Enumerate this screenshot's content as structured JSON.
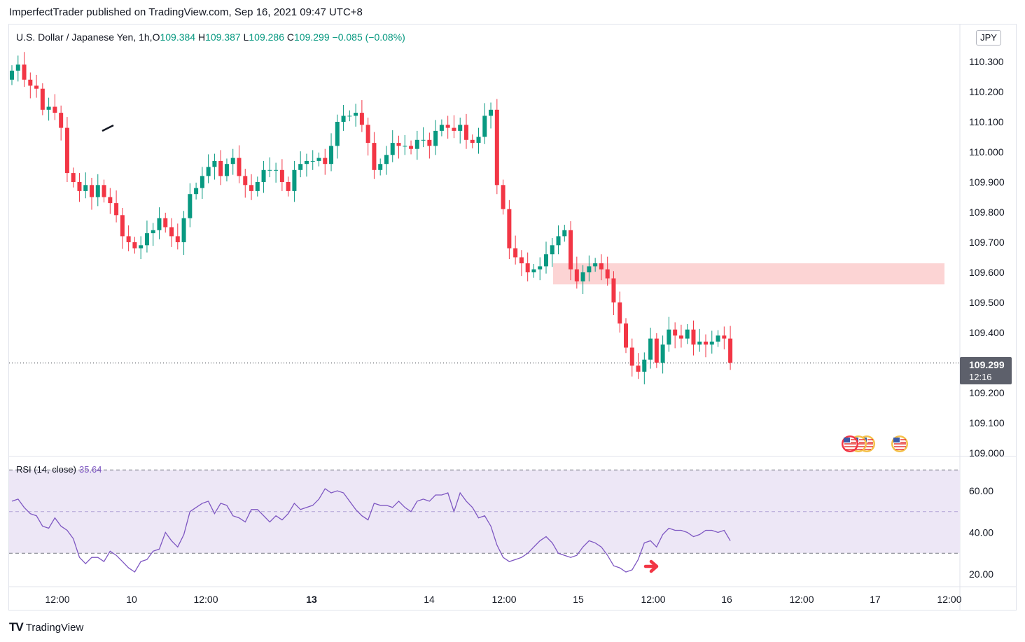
{
  "publisher": "ImperfectTrader published on TradingView.com, Sep 16, 2021 09:47 UTC+8",
  "header": {
    "symbol": "U.S. Dollar / Japanese Yen, 1h,",
    "o_label": "O",
    "o_value": "109.384",
    "h_label": "H",
    "h_value": "109.387",
    "l_label": "L",
    "l_value": "109.286",
    "c_label": "C",
    "c_value": "109.299",
    "change": "−0.085 (−0.08%)"
  },
  "currency_badge": "JPY",
  "last_price": {
    "price": "109.299",
    "countdown": "12:16"
  },
  "rsi": {
    "label": "RSI (14, close)",
    "value": "35.64"
  },
  "brand": {
    "logo": "TV",
    "name": "TradingView"
  },
  "colors": {
    "up": "#089981",
    "down": "#f23645",
    "rsi_line": "#7e57c2",
    "rsi_band": "#ede7f6",
    "zone": "#fcd4d4",
    "arrow": "#f23645"
  },
  "icons": [
    "us-flag-event-icon",
    "us-flag-event-icon",
    "us-flag-event-icon",
    "us-flag-event-icon",
    "red-arrow-icon",
    "diagonal-line-drawing"
  ],
  "chart_data": [
    {
      "type": "candlestick",
      "title": "U.S. Dollar / Japanese Yen, 1h",
      "ylim": [
        109.0,
        110.4
      ],
      "y_ticks": [
        "110.300",
        "110.200",
        "110.100",
        "110.000",
        "109.900",
        "109.800",
        "109.700",
        "109.600",
        "109.500",
        "109.400",
        "109.300",
        "109.200",
        "109.100",
        "109.000"
      ],
      "x_ticks": [
        "12:00",
        "10",
        "12:00",
        "13",
        "14",
        "12:00",
        "15",
        "12:00",
        "16",
        "12:00",
        "17",
        "12:00"
      ],
      "close": [
        110.27,
        110.29,
        110.24,
        110.22,
        110.21,
        110.14,
        110.15,
        110.13,
        110.08,
        109.93,
        109.9,
        109.87,
        109.89,
        109.85,
        109.89,
        109.85,
        109.83,
        109.79,
        109.72,
        109.7,
        109.68,
        109.69,
        109.73,
        109.74,
        109.78,
        109.75,
        109.72,
        109.7,
        109.78,
        109.86,
        109.88,
        109.92,
        109.95,
        109.97,
        109.92,
        109.96,
        109.98,
        109.92,
        109.89,
        109.87,
        109.9,
        109.94,
        109.94,
        109.94,
        109.9,
        109.87,
        109.94,
        109.96,
        109.97,
        109.97,
        109.98,
        109.96,
        110.02,
        110.1,
        110.12,
        110.12,
        110.13,
        110.09,
        110.03,
        109.94,
        109.96,
        109.99,
        110.03,
        110.02,
        110.02,
        110.01,
        110.04,
        110.04,
        110.02,
        110.07,
        110.09,
        110.08,
        110.07,
        110.09,
        110.04,
        110.03,
        110.05,
        110.12,
        110.14,
        109.89,
        109.81,
        109.68,
        109.65,
        109.63,
        109.6,
        109.61,
        109.62,
        109.66,
        109.69,
        109.72,
        109.74,
        109.61,
        109.57,
        109.6,
        109.62,
        109.63,
        109.61,
        109.58,
        109.5,
        109.43,
        109.35,
        109.29,
        109.27,
        109.31,
        109.38,
        109.3,
        109.36,
        109.41,
        109.39,
        109.38,
        109.41,
        109.36,
        109.37,
        109.36,
        109.37,
        109.39,
        109.38,
        109.3
      ],
      "open_first": 110.24,
      "zone": {
        "from": 109.56,
        "to": 109.63
      }
    },
    {
      "type": "line",
      "title": "RSI (14, close)",
      "ylim": [
        15,
        70
      ],
      "y_ticks": [
        "60.00",
        "40.00",
        "20.00"
      ],
      "levels": [
        70,
        50,
        30
      ],
      "values": [
        55,
        56,
        52,
        49,
        48,
        43,
        42,
        47,
        43,
        41,
        37,
        28,
        25,
        28,
        28,
        26,
        31,
        29,
        26,
        23,
        21,
        26,
        27,
        31,
        32,
        40,
        36,
        33,
        39,
        50,
        52,
        54,
        55,
        49,
        54,
        53,
        48,
        47,
        45,
        51,
        51,
        48,
        45,
        48,
        46,
        49,
        54,
        51,
        52,
        53,
        56,
        61,
        59,
        60,
        59,
        55,
        51,
        48,
        46,
        54,
        53,
        53,
        52,
        55,
        52,
        50,
        55,
        56,
        55,
        58,
        58,
        59,
        50,
        59,
        55,
        52,
        47,
        48,
        43,
        34,
        28,
        26,
        27,
        28,
        30,
        33,
        36,
        38,
        35,
        30,
        29,
        28,
        29,
        33,
        36,
        35,
        33,
        29,
        24,
        23,
        21,
        22,
        27,
        35,
        36,
        33,
        39,
        42,
        41,
        41,
        40,
        38,
        39,
        41,
        41,
        40,
        41,
        36
      ]
    }
  ]
}
